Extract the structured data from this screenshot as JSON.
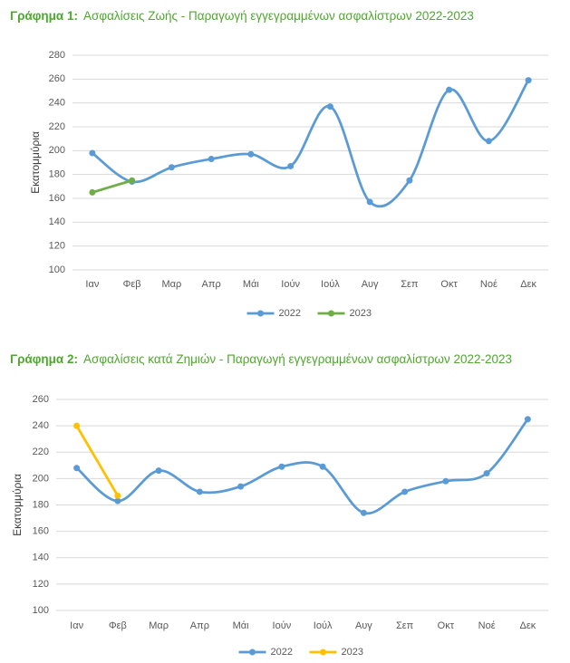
{
  "chart_data": [
    {
      "type": "line",
      "title_label": "Γράφημα 1:",
      "title": "Ασφαλίσεις Ζωής - Παραγωγή εγγεγραμμένων ασφαλίστρων 2022-2023",
      "y_label": "Εκατομμύρια",
      "categories": [
        "Ιαν",
        "Φεβ",
        "Μαρ",
        "Απρ",
        "Μάι",
        "Ιούν",
        "Ιούλ",
        "Αυγ",
        "Σεπ",
        "Οκτ",
        "Νοέ",
        "Δεκ"
      ],
      "series": [
        {
          "name": "2022",
          "color": "#5b9bd5",
          "values": [
            198,
            174,
            186,
            193,
            197,
            187,
            237,
            157,
            175,
            251,
            208,
            259
          ]
        },
        {
          "name": "2023",
          "color": "#70ad47",
          "values": [
            165,
            175,
            null,
            null,
            null,
            null,
            null,
            null,
            null,
            null,
            null,
            null
          ]
        }
      ],
      "ylim": [
        100,
        280
      ],
      "yticks": [
        100,
        120,
        140,
        160,
        180,
        200,
        220,
        240,
        260,
        280
      ],
      "grid": true,
      "smooth": true,
      "legend": "bottom"
    },
    {
      "type": "line",
      "title_label": "Γράφημα 2:",
      "title": "Ασφαλίσεις κατά Ζημιών - Παραγωγή εγγεγραμμένων ασφαλίστρων 2022-2023",
      "y_label": "Εκατομμύρια",
      "categories": [
        "Ιαν",
        "Φεβ",
        "Μαρ",
        "Απρ",
        "Μάι",
        "Ιούν",
        "Ιούλ",
        "Αυγ",
        "Σεπ",
        "Οκτ",
        "Νοέ",
        "Δεκ"
      ],
      "series": [
        {
          "name": "2022",
          "color": "#5b9bd5",
          "values": [
            208,
            183,
            206,
            190,
            194,
            209,
            209,
            174,
            190,
            198,
            204,
            245
          ]
        },
        {
          "name": "2023",
          "color": "#ffc000",
          "values": [
            240,
            187,
            null,
            null,
            null,
            null,
            null,
            null,
            null,
            null,
            null,
            null
          ]
        }
      ],
      "ylim": [
        100,
        260
      ],
      "yticks": [
        100,
        120,
        140,
        160,
        180,
        200,
        220,
        240,
        260
      ],
      "grid": true,
      "smooth": true,
      "legend": "bottom"
    }
  ]
}
